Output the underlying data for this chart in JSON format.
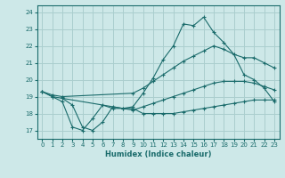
{
  "xlabel": "Humidex (Indice chaleur)",
  "bg_color": "#cde8e8",
  "grid_color": "#aacece",
  "line_color": "#1a6b6b",
  "xlim": [
    -0.5,
    23.5
  ],
  "ylim": [
    16.5,
    24.4
  ],
  "yticks": [
    17,
    18,
    19,
    20,
    21,
    22,
    23,
    24
  ],
  "xticks": [
    0,
    1,
    2,
    3,
    4,
    5,
    6,
    7,
    8,
    9,
    10,
    11,
    12,
    13,
    14,
    15,
    16,
    17,
    18,
    19,
    20,
    21,
    22,
    23
  ],
  "line1_x": [
    0,
    1,
    2,
    3,
    4,
    5,
    6,
    7,
    8,
    9,
    10,
    11,
    12,
    13,
    14,
    15,
    16,
    17,
    18,
    19,
    20,
    21,
    22,
    23
  ],
  "line1_y": [
    19.3,
    19.0,
    18.7,
    17.2,
    17.0,
    17.7,
    18.5,
    18.3,
    18.3,
    18.4,
    19.2,
    20.1,
    21.2,
    22.0,
    23.3,
    23.2,
    23.7,
    22.8,
    22.2,
    21.5,
    20.3,
    20.0,
    19.5,
    18.7
  ],
  "line2_x": [
    0,
    1,
    2,
    9,
    10,
    11,
    12,
    13,
    14,
    15,
    16,
    17,
    18,
    19,
    20,
    21,
    22,
    23
  ],
  "line2_y": [
    19.3,
    19.1,
    19.0,
    19.2,
    19.5,
    19.9,
    20.3,
    20.7,
    21.1,
    21.4,
    21.7,
    22.0,
    21.8,
    21.5,
    21.3,
    21.3,
    21.0,
    20.7
  ],
  "line3_x": [
    0,
    1,
    2,
    9,
    10,
    11,
    12,
    13,
    14,
    15,
    16,
    17,
    18,
    19,
    20,
    21,
    22,
    23
  ],
  "line3_y": [
    19.3,
    19.0,
    18.9,
    18.2,
    18.4,
    18.6,
    18.8,
    19.0,
    19.2,
    19.4,
    19.6,
    19.8,
    19.9,
    19.9,
    19.9,
    19.8,
    19.6,
    19.4
  ],
  "line4_x": [
    2,
    3,
    4,
    5,
    6,
    7,
    8,
    9,
    10,
    11,
    12,
    13,
    14,
    15,
    16,
    17,
    18,
    19,
    20,
    21,
    22,
    23
  ],
  "line4_y": [
    18.9,
    18.5,
    17.2,
    17.0,
    17.5,
    18.4,
    18.3,
    18.3,
    18.0,
    18.0,
    18.0,
    18.0,
    18.1,
    18.2,
    18.3,
    18.4,
    18.5,
    18.6,
    18.7,
    18.8,
    18.8,
    18.8
  ]
}
